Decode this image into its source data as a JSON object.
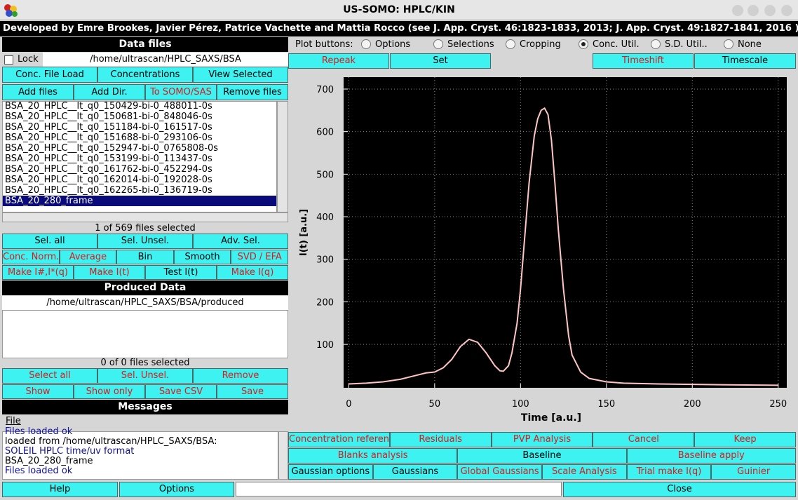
{
  "window": {
    "title": "US-SOMO: HPLC/KIN",
    "banner": "Developed by Emre Brookes, Javier Pérez, Patrice Vachette and Mattia Rocco (see J. App. Cryst. 46:1823-1833, 2013; J. App. Cryst. 49:1827-1841, 2016 )"
  },
  "data_files": {
    "header": "Data files",
    "lock": "Lock",
    "path": "/home/ultrascan/HPLC_SAXS/BSA",
    "buttons": [
      [
        "Conc. File Load",
        "Concentrations",
        "View Selected"
      ],
      [
        "Add files",
        "Add Dir.",
        "To SOMO/SAS",
        "Remove files"
      ]
    ],
    "files": [
      "BSA_20_HPLC__lt_q0_150429-bi-0_488011-0s",
      "BSA_20_HPLC__lt_q0_150681-bi-0_848046-0s",
      "BSA_20_HPLC__lt_q0_151184-bi-0_161517-0s",
      "BSA_20_HPLC__lt_q0_151688-bi-0_293106-0s",
      "BSA_20_HPLC__lt_q0_152947-bi-0_0765808-0s",
      "BSA_20_HPLC__lt_q0_153199-bi-0_113437-0s",
      "BSA_20_HPLC__lt_q0_161762-bi-0_452294-0s",
      "BSA_20_HPLC__lt_q0_162014-bi-0_192028-0s",
      "BSA_20_HPLC__lt_q0_162265-bi-0_136719-0s",
      "BSA_20_280_frame"
    ],
    "selected_file": 9,
    "status": "1 of 569 files selected",
    "buttons2": [
      [
        "Sel. all",
        "Sel. Unsel.",
        "Adv. Sel."
      ],
      [
        "Conc. Norm.",
        "Average",
        "Bin",
        "Smooth",
        "SVD / EFA"
      ],
      [
        "Make I#,I*(q)",
        "Make I(t)",
        "Test I(t)",
        "Make I(q)"
      ]
    ]
  },
  "produced_data": {
    "header": "Produced Data",
    "path": "/home/ultrascan/HPLC_SAXS/BSA/produced",
    "status": "0 of 0 files selected",
    "buttons": [
      [
        "Select all",
        "Sel. Unsel.",
        "Remove"
      ],
      [
        "Show",
        "Show only",
        "Save CSV",
        "Save"
      ]
    ]
  },
  "messages": {
    "header": "Messages",
    "menu": "File",
    "lines": [
      "Files loaded ok",
      "loaded from /home/ultrascan/HPLC_SAXS/BSA:",
      "SOLEIL HPLC time/uv format",
      "BSA_20_280_frame",
      "Files loaded ok"
    ]
  },
  "plot_buttons": {
    "label": "Plot buttons:",
    "options": [
      "Options",
      "Selections",
      "Cropping",
      "Conc. Util.",
      "S.D. Util..",
      "None"
    ],
    "checked": 3
  },
  "top_buttons": [
    "Repeak",
    "Set",
    "Timeshift",
    "Timescale"
  ],
  "bottom_buttons": [
    [
      "Concentration reference",
      "Residuals",
      "PVP Analysis",
      "Cancel",
      "Keep"
    ],
    [
      "Blanks analysis",
      "Baseline",
      "Baseline apply"
    ],
    [
      "Gaussian options",
      "Gaussians",
      "Global Gaussians",
      "Scale Analysis",
      "Trial make I(q)",
      "Guinier"
    ]
  ],
  "footer_buttons": [
    "Help",
    "Options",
    "Close"
  ],
  "chart_data": {
    "type": "line",
    "xlabel": "Time [a.u.]",
    "ylabel": "I(t) [a.u.]",
    "x": [
      0,
      10,
      20,
      30,
      40,
      45,
      50,
      55,
      60,
      65,
      70,
      75,
      80,
      85,
      88,
      90,
      93,
      95,
      98,
      100,
      103,
      105,
      108,
      110,
      112,
      114,
      116,
      118,
      120,
      122,
      125,
      128,
      130,
      135,
      140,
      150,
      160,
      180,
      200,
      220,
      250
    ],
    "series": [
      {
        "name": "BSA_20_280_frame",
        "color": "#ffc4c4",
        "values": [
          7,
          9,
          12,
          18,
          28,
          33,
          35,
          45,
          65,
          95,
          112,
          105,
          80,
          50,
          38,
          37,
          50,
          80,
          150,
          230,
          380,
          480,
          590,
          630,
          650,
          655,
          640,
          580,
          480,
          370,
          230,
          120,
          75,
          35,
          20,
          12,
          9,
          7,
          6,
          5,
          4
        ]
      }
    ],
    "xlim": [
      -3,
      255
    ],
    "ylim": [
      -2,
      728
    ],
    "xticks": [
      0,
      50,
      100,
      150,
      200,
      250
    ],
    "yticks": [
      100,
      200,
      300,
      400,
      500,
      600,
      700
    ],
    "grid": true
  }
}
